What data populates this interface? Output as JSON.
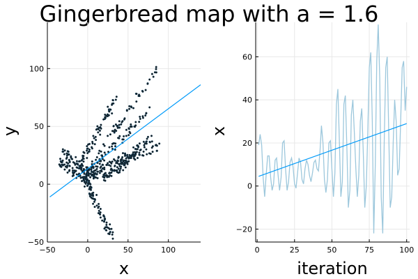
{
  "title": "Gingerbread map with a = 1.6",
  "colors": {
    "scatter_fill": "#1a1a1a",
    "scatter_edge": "#0b3d5c",
    "fit_line": "#009af9",
    "series_line": "#9cc7dc",
    "grid": "#e8e8e8",
    "axis": "#000000"
  },
  "chart_data": [
    {
      "type": "scatter",
      "title": "",
      "xlabel": "x",
      "ylabel": "y",
      "xlim": [
        -50,
        140
      ],
      "ylim": [
        -50,
        140
      ],
      "xticks": [
        -50,
        0,
        50,
        100
      ],
      "yticks": [
        -50,
        0,
        50,
        100
      ],
      "grid": true,
      "legend": "none",
      "fit_line": {
        "x": [
          -47,
          140
        ],
        "y": [
          -11,
          86
        ]
      },
      "clusters": [
        {
          "x": [
            -5,
            85
          ],
          "y": [
            5,
            100
          ]
        },
        {
          "x": [
            -5,
            75
          ],
          "y": [
            5,
            65
          ]
        },
        {
          "x": [
            0,
            80
          ],
          "y": [
            5,
            40
          ]
        },
        {
          "x": [
            -5,
            90
          ],
          "y": [
            10,
            32
          ]
        },
        {
          "x": [
            -35,
            5
          ],
          "y": [
            20,
            -2
          ]
        },
        {
          "x": [
            0,
            30
          ],
          "y": [
            0,
            -45
          ]
        },
        {
          "x": [
            -30,
            10
          ],
          "y": [
            28,
            5
          ]
        },
        {
          "x": [
            20,
            60
          ],
          "y": [
            5,
            25
          ]
        },
        {
          "x": [
            -10,
            35
          ],
          "y": [
            15,
            75
          ]
        }
      ]
    },
    {
      "type": "line",
      "title": "",
      "xlabel": "iteration",
      "ylabel": "x",
      "xlim": [
        -1,
        102
      ],
      "ylim": [
        -26,
        76
      ],
      "xticks": [
        0,
        25,
        50,
        75,
        100
      ],
      "yticks": [
        -20,
        0,
        20,
        40,
        60
      ],
      "grid": true,
      "legend": "none",
      "fit_line": {
        "x": [
          1,
          100
        ],
        "y": [
          4.5,
          29
        ]
      },
      "series": [
        {
          "x": [
            1,
            2,
            3,
            4,
            5,
            6,
            7,
            8,
            9,
            10,
            11,
            12,
            13,
            14,
            15,
            16,
            17,
            18,
            19,
            20,
            21,
            22,
            23,
            24,
            25,
            26,
            27,
            28,
            29,
            30,
            31,
            32,
            33,
            34,
            35,
            36,
            37,
            38,
            39,
            40,
            41,
            42,
            43,
            44,
            45,
            46,
            47,
            48,
            49,
            50,
            51,
            52,
            53,
            54,
            55,
            56,
            57,
            58,
            59,
            60,
            61,
            62,
            63,
            64,
            65,
            66,
            67,
            68,
            69,
            70,
            71,
            72,
            73,
            74,
            75,
            76,
            77,
            78,
            79,
            80,
            81,
            82,
            83,
            84,
            85,
            86,
            87,
            88,
            89,
            90,
            91,
            92,
            93,
            94,
            95,
            96,
            97,
            98,
            99,
            100
          ],
          "values": [
            19,
            24,
            19,
            4,
            -5,
            5,
            14,
            14,
            4,
            -2,
            1,
            12,
            13,
            5,
            -2,
            4,
            20,
            21,
            8,
            -2,
            2,
            11,
            13,
            9,
            1,
            -1,
            6,
            13,
            11,
            3,
            1,
            8,
            12,
            10,
            5,
            2,
            6,
            11,
            12,
            8,
            7,
            16,
            28,
            20,
            3,
            -3,
            3,
            20,
            21,
            8,
            -5,
            6,
            38,
            45,
            20,
            -5,
            2,
            38,
            42,
            18,
            -10,
            -2,
            33,
            40,
            25,
            8,
            -5,
            5,
            30,
            36,
            15,
            -10,
            0,
            25,
            55,
            62,
            30,
            -22,
            10,
            58,
            75,
            50,
            -5,
            -22,
            20,
            55,
            60,
            25,
            -10,
            -5,
            20,
            40,
            30,
            5,
            8,
            30,
            55,
            58,
            35,
            46
          ]
        }
      ]
    }
  ]
}
